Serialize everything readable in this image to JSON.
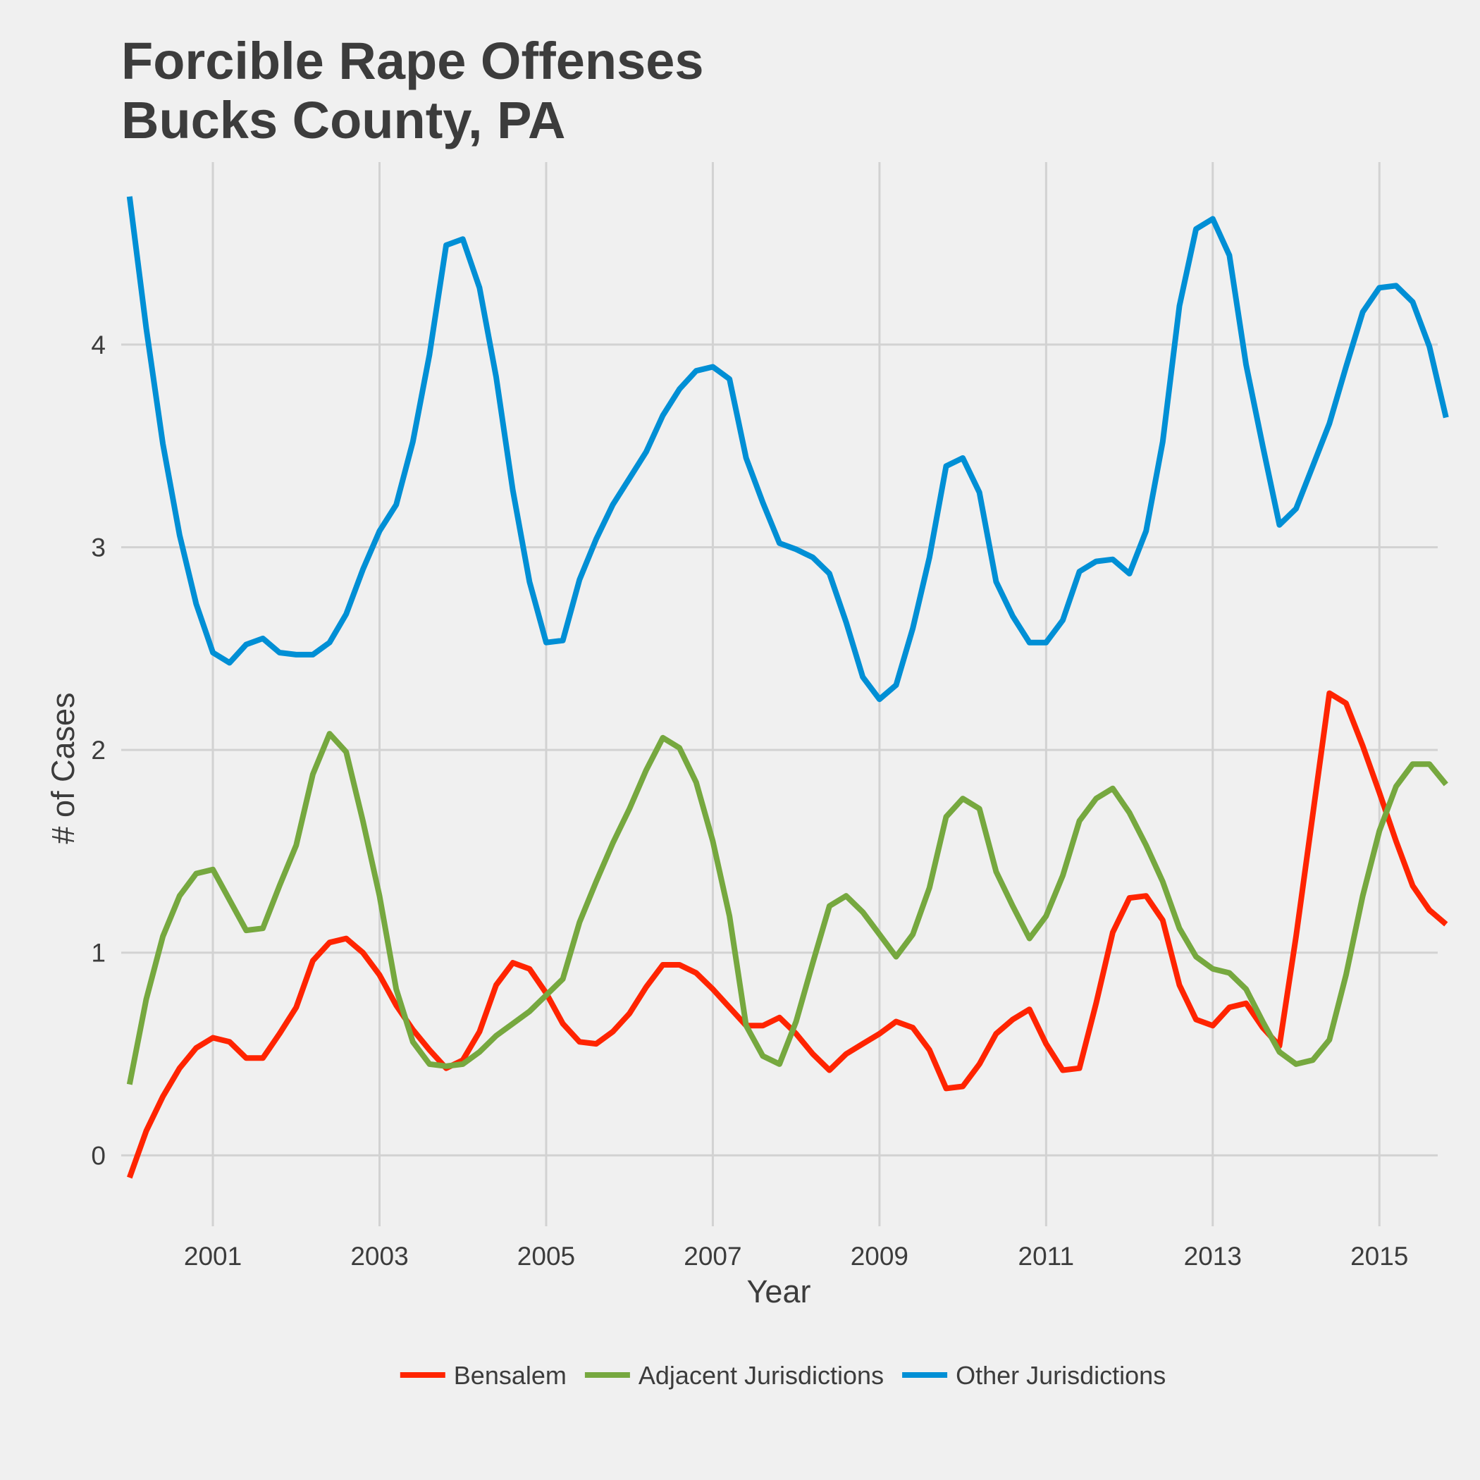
{
  "chart_data": {
    "type": "line",
    "title_lines": [
      "Forcible Rape Offenses",
      "Bucks County, PA"
    ],
    "xlabel": "Year",
    "ylabel": "# of Cases",
    "xlim": [
      1999.9,
      2015.7
    ],
    "ylim": [
      -0.35,
      4.9
    ],
    "x_ticks": [
      2001,
      2003,
      2005,
      2007,
      2009,
      2011,
      2013,
      2015
    ],
    "y_ticks": [
      0,
      1,
      2,
      3,
      4
    ],
    "grid": true,
    "legend_position": "bottom",
    "x_start": 2000.0,
    "x_step": 0.2,
    "series": [
      {
        "name": "Bensalem",
        "color": "#ff2400",
        "values": [
          -0.11,
          0.12,
          0.29,
          0.43,
          0.53,
          0.58,
          0.56,
          0.48,
          0.48,
          0.6,
          0.73,
          0.96,
          1.05,
          1.07,
          1.0,
          0.89,
          0.74,
          0.62,
          0.52,
          0.43,
          0.47,
          0.61,
          0.84,
          0.95,
          0.92,
          0.8,
          0.65,
          0.56,
          0.55,
          0.61,
          0.7,
          0.83,
          0.94,
          0.94,
          0.9,
          0.82,
          0.73,
          0.64,
          0.64,
          0.68,
          0.6,
          0.5,
          0.42,
          0.5,
          0.55,
          0.6,
          0.66,
          0.63,
          0.52,
          0.33,
          0.34,
          0.45,
          0.6,
          0.67,
          0.72,
          0.55,
          0.42,
          0.43,
          0.75,
          1.1,
          1.27,
          1.28,
          1.16,
          0.84,
          0.67,
          0.64,
          0.73,
          0.75,
          0.63,
          0.54,
          1.08,
          1.68,
          2.28,
          2.23,
          2.02,
          1.79,
          1.55,
          1.33,
          1.21,
          1.14
        ]
      },
      {
        "name": "Adjacent Jurisdictions",
        "color": "#76a83f",
        "values": [
          0.35,
          0.77,
          1.08,
          1.28,
          1.39,
          1.41,
          1.26,
          1.11,
          1.12,
          1.33,
          1.53,
          1.88,
          2.08,
          1.99,
          1.65,
          1.28,
          0.82,
          0.56,
          0.45,
          0.44,
          0.45,
          0.51,
          0.59,
          0.65,
          0.71,
          0.79,
          0.87,
          1.15,
          1.35,
          1.54,
          1.71,
          1.9,
          2.06,
          2.01,
          1.84,
          1.55,
          1.18,
          0.64,
          0.49,
          0.45,
          0.66,
          0.95,
          1.23,
          1.28,
          1.2,
          1.09,
          0.98,
          1.09,
          1.32,
          1.67,
          1.76,
          1.71,
          1.4,
          1.23,
          1.07,
          1.18,
          1.38,
          1.65,
          1.76,
          1.81,
          1.69,
          1.53,
          1.35,
          1.12,
          0.98,
          0.92,
          0.9,
          0.82,
          0.66,
          0.51,
          0.45,
          0.47,
          0.57,
          0.89,
          1.28,
          1.6,
          1.82,
          1.93,
          1.93,
          1.83
        ]
      },
      {
        "name": "Other Jurisdictions",
        "color": "#008fd5",
        "values": [
          4.73,
          4.08,
          3.51,
          3.06,
          2.72,
          2.48,
          2.43,
          2.52,
          2.55,
          2.48,
          2.47,
          2.47,
          2.53,
          2.67,
          2.89,
          3.08,
          3.21,
          3.52,
          3.95,
          4.49,
          4.52,
          4.28,
          3.84,
          3.28,
          2.83,
          2.53,
          2.54,
          2.84,
          3.04,
          3.21,
          3.34,
          3.47,
          3.65,
          3.78,
          3.87,
          3.89,
          3.83,
          3.44,
          3.22,
          3.02,
          2.99,
          2.95,
          2.87,
          2.63,
          2.36,
          2.25,
          2.32,
          2.6,
          2.95,
          3.4,
          3.44,
          3.27,
          2.83,
          2.66,
          2.53,
          2.53,
          2.64,
          2.88,
          2.93,
          2.94,
          2.87,
          3.08,
          3.52,
          4.19,
          4.57,
          4.62,
          4.44,
          3.9,
          3.5,
          3.11,
          3.19,
          3.4,
          3.61,
          3.89,
          4.16,
          4.28,
          4.29,
          4.21,
          3.99,
          3.64
        ]
      }
    ]
  }
}
